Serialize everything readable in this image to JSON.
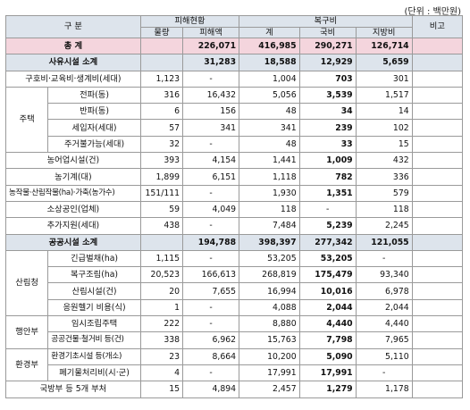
{
  "unit_label": "(단위 : 백만원)",
  "header": {
    "category": "구  분",
    "damage": "피해현황",
    "recovery": "복구비",
    "note": "비고",
    "qty": "물량",
    "damage_amount": "피해액",
    "total": "계",
    "national": "국비",
    "local": "지방비"
  },
  "rows": {
    "total": {
      "label": "총   계",
      "qty": "",
      "damage": "226,071",
      "sum": "416,985",
      "national": "290,271",
      "local": "126,714"
    },
    "private_sub": {
      "label": "사유시설 소계",
      "qty": "",
      "damage": "31,283",
      "sum": "18,588",
      "national": "12,929",
      "local": "5,659"
    },
    "relief": {
      "label": "구호비·교육비·생계비(세대)",
      "qty": "1,123",
      "damage": "-",
      "sum": "1,004",
      "national": "703",
      "local": "301"
    },
    "housing": {
      "group": "주택",
      "full": {
        "label": "전파(동)",
        "qty": "316",
        "damage": "16,432",
        "sum": "5,056",
        "national": "3,539",
        "local": "1,517"
      },
      "half": {
        "label": "반파(동)",
        "qty": "6",
        "damage": "156",
        "sum": "48",
        "national": "34",
        "local": "14"
      },
      "tenant": {
        "label": "세입자(세대)",
        "qty": "57",
        "damage": "341",
        "sum": "341",
        "national": "239",
        "local": "102"
      },
      "uninhabitable": {
        "label": "주거불가능(세대)",
        "qty": "32",
        "damage": "-",
        "sum": "48",
        "national": "33",
        "local": "15"
      }
    },
    "fishery": {
      "label": "농어업시설(건)",
      "qty": "393",
      "damage": "4,154",
      "sum": "1,441",
      "national": "1,009",
      "local": "432"
    },
    "machinery": {
      "label": "농기계(대)",
      "qty": "1,899",
      "damage": "6,151",
      "sum": "1,118",
      "national": "782",
      "local": "336"
    },
    "crops": {
      "label": "농작물·산림작물(ha)·가축(농가수)",
      "qty": "151/111",
      "damage": "-",
      "sum": "1,930",
      "national": "1,351",
      "local": "579"
    },
    "merchant": {
      "label": "소상공인(업체)",
      "qty": "59",
      "damage": "4,049",
      "sum": "118",
      "national": "-",
      "local": "118"
    },
    "extra": {
      "label": "추가지원(세대)",
      "qty": "438",
      "damage": "-",
      "sum": "7,484",
      "national": "5,239",
      "local": "2,245"
    },
    "public_sub": {
      "label": "공공시설 소계",
      "qty": "",
      "damage": "194,788",
      "sum": "398,397",
      "national": "277,342",
      "local": "121,055"
    },
    "forest": {
      "group": "산림청",
      "emergency": {
        "label": "긴급벌채(ha)",
        "qty": "1,115",
        "damage": "-",
        "sum": "53,205",
        "national": "53,205",
        "local": "-"
      },
      "reforest": {
        "label": "복구조림(ha)",
        "qty": "20,523",
        "damage": "166,613",
        "sum": "268,819",
        "national": "175,479",
        "local": "93,340"
      },
      "facility": {
        "label": "산림시설(건)",
        "qty": "20",
        "damage": "7,655",
        "sum": "16,994",
        "national": "10,016",
        "local": "6,978"
      },
      "heli": {
        "label": "응원헬기 비용(식)",
        "qty": "1",
        "damage": "-",
        "sum": "4,088",
        "national": "2,044",
        "local": "2,044"
      }
    },
    "interior": {
      "group": "행안부",
      "temp": {
        "label": "임시조립주택",
        "qty": "222",
        "damage": "-",
        "sum": "8,880",
        "national": "4,440",
        "local": "4,440"
      },
      "demolish": {
        "label": "공공건물·철거비 등(건)",
        "qty": "338",
        "damage": "6,962",
        "sum": "15,763",
        "national": "7,798",
        "local": "7,965"
      }
    },
    "env": {
      "group": "환경부",
      "base": {
        "label": "환경기초시설 등(개소)",
        "qty": "23",
        "damage": "8,664",
        "sum": "10,200",
        "national": "5,090",
        "local": "5,110"
      },
      "waste": {
        "label": "폐기물처리비(시·군)",
        "qty": "4",
        "damage": "-",
        "sum": "17,991",
        "national": "17,991",
        "local": "-"
      }
    },
    "defense": {
      "label": "국방부 등 5개 부처",
      "qty": "15",
      "damage": "4,894",
      "sum": "2,457",
      "national": "1,279",
      "local": "1,178"
    }
  }
}
